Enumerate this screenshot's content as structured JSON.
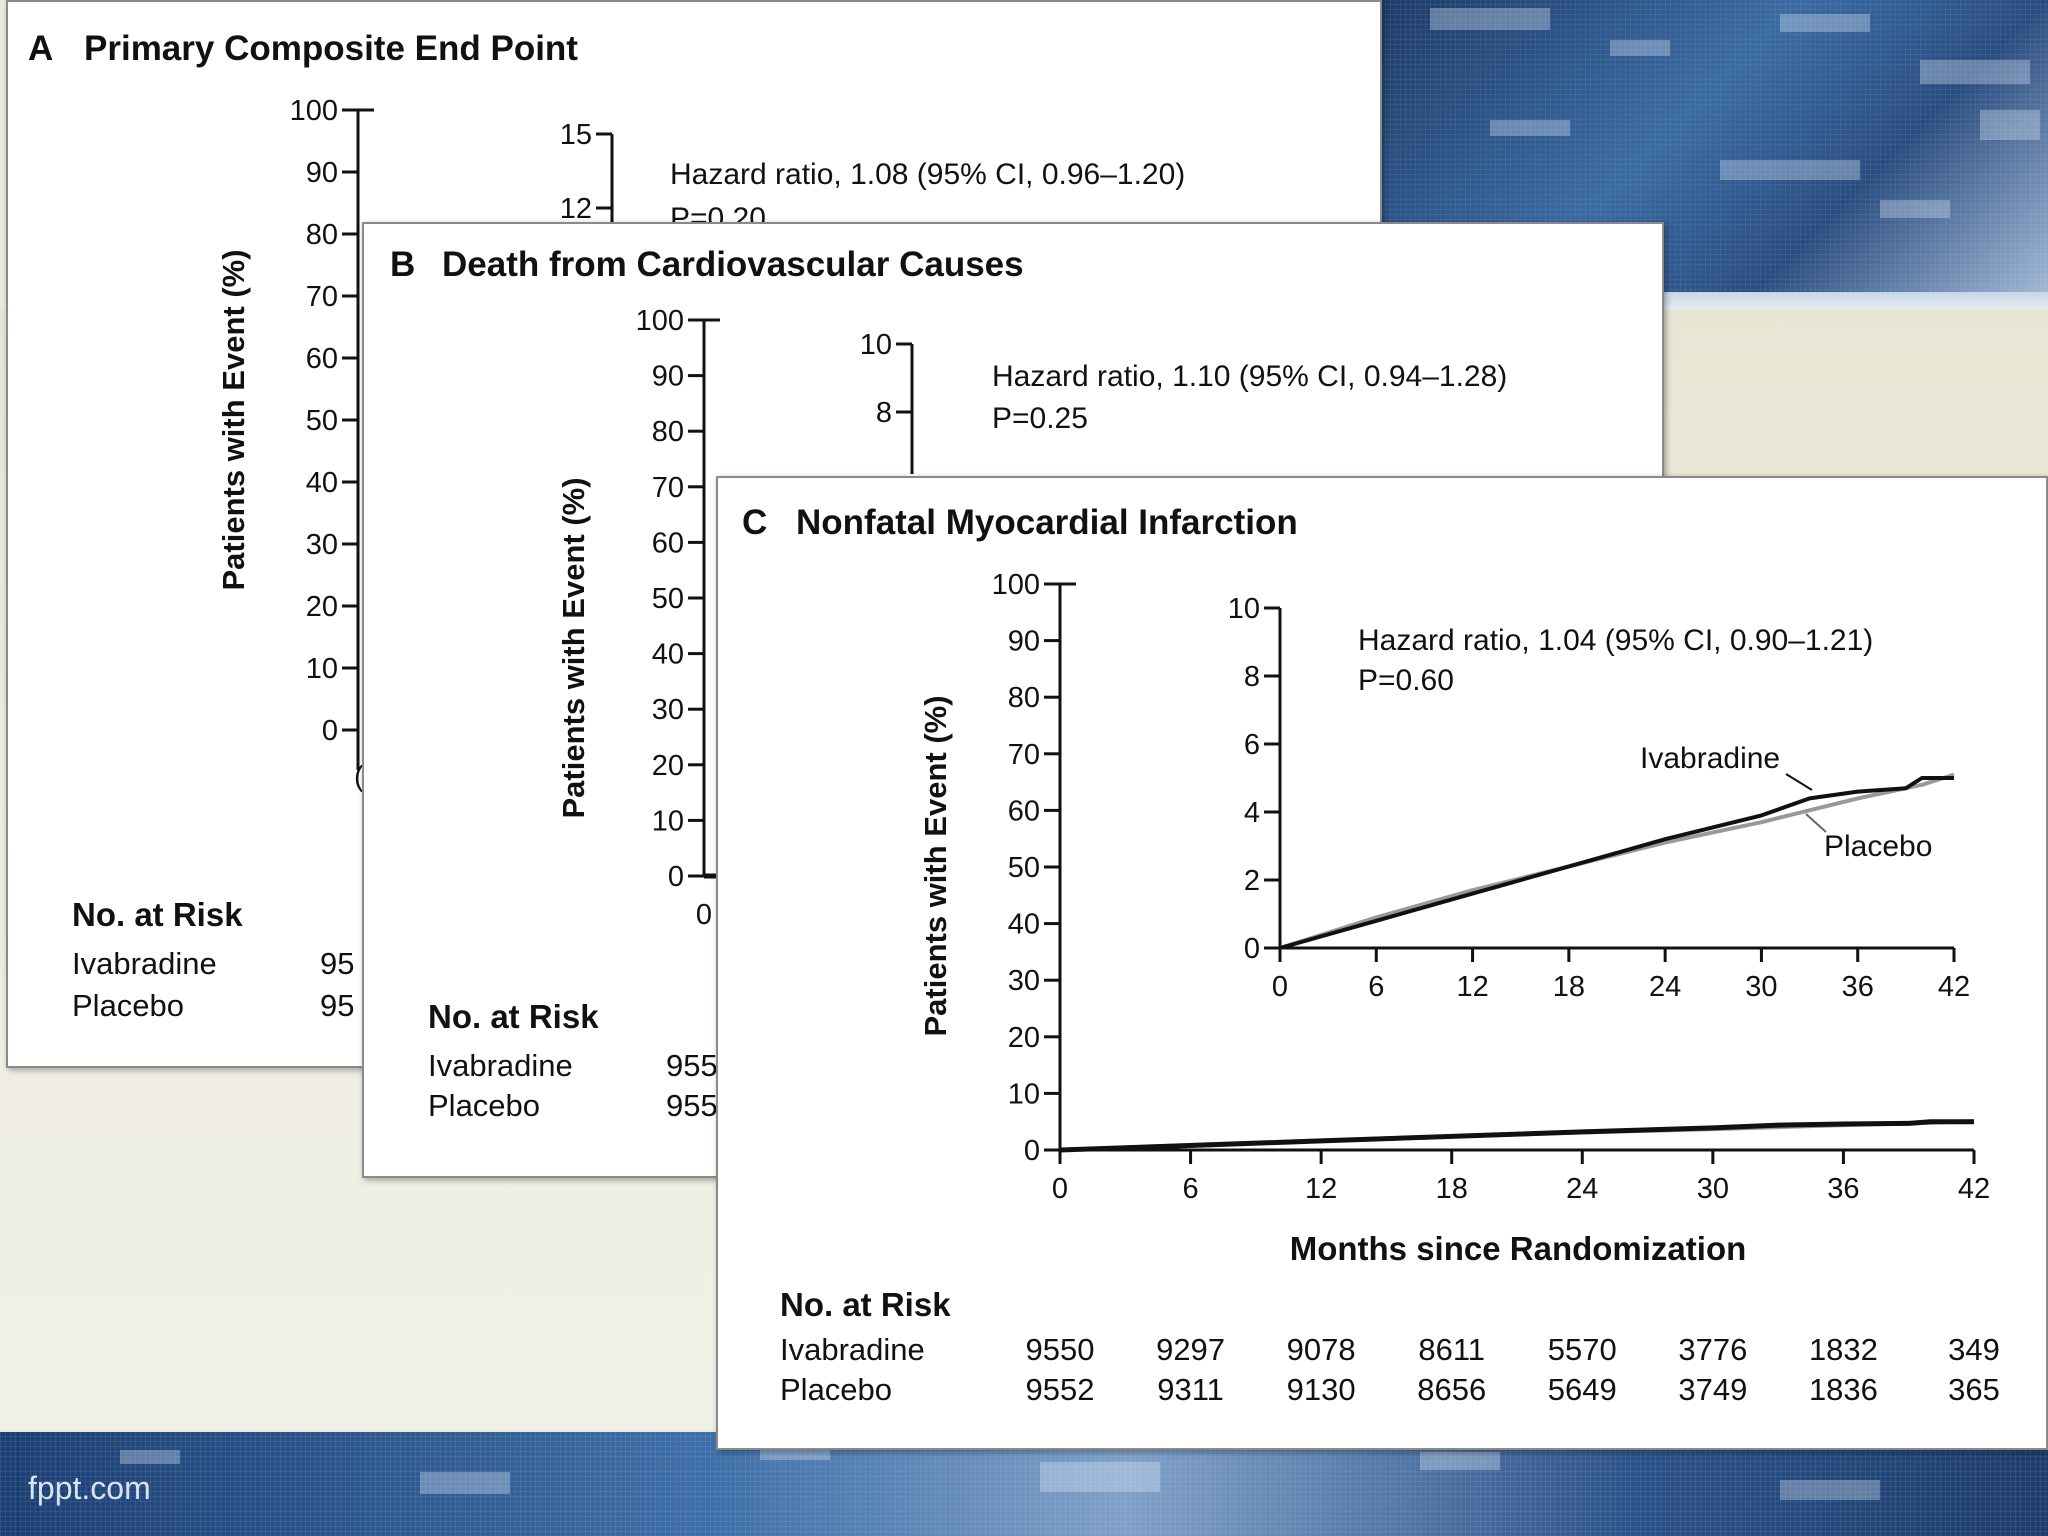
{
  "footer": {
    "site_text": "fppt.com"
  },
  "colors": {
    "ivabradine": "#111111",
    "placebo": "#999999",
    "slide_blue": "#27497a"
  },
  "chart_data": [
    {
      "type": "line",
      "panel_letter": "A",
      "title": "Primary Composite End Point",
      "ylabel": "Patients with Event (%)",
      "ylim": [
        0,
        100
      ],
      "yticks": [
        "0",
        "10",
        "20",
        "30",
        "40",
        "50",
        "60",
        "70",
        "80",
        "90",
        "100"
      ],
      "inset": {
        "yticks_visible": [
          "15",
          "12"
        ],
        "hazard_ratio": "Hazard ratio, 1.08 (95% CI, 0.96–1.20)",
        "p_value": "P=0.20"
      },
      "x_first_tick_partial": "(",
      "no_at_risk": {
        "heading": "No. at Risk",
        "rows": [
          {
            "group": "Ivabradine",
            "first_value_partial": "95"
          },
          {
            "group": "Placebo",
            "first_value_partial": "95"
          }
        ]
      }
    },
    {
      "type": "line",
      "panel_letter": "B",
      "title": "Death from Cardiovascular Causes",
      "ylabel": "Patients with Event (%)",
      "ylim": [
        0,
        100
      ],
      "yticks": [
        "0",
        "10",
        "20",
        "30",
        "40",
        "50",
        "60",
        "70",
        "80",
        "90",
        "100"
      ],
      "x_first_tick": "0",
      "inset": {
        "yticks_visible": [
          "10",
          "8"
        ],
        "hazard_ratio": "Hazard ratio, 1.10 (95% CI, 0.94–1.28)",
        "p_value": "P=0.25"
      },
      "no_at_risk": {
        "heading": "No. at Risk",
        "rows": [
          {
            "group": "Ivabradine",
            "first_value_partial": "955"
          },
          {
            "group": "Placebo",
            "first_value_partial": "955"
          }
        ]
      }
    },
    {
      "type": "line",
      "panel_letter": "C",
      "title": "Nonfatal Myocardial Infarction",
      "ylabel": "Patients with Event (%)",
      "xlabel": "Months since Randomization",
      "ylim": [
        0,
        100
      ],
      "xlim": [
        0,
        42
      ],
      "yticks": [
        "0",
        "10",
        "20",
        "30",
        "40",
        "50",
        "60",
        "70",
        "80",
        "90",
        "100"
      ],
      "xticks": [
        "0",
        "6",
        "12",
        "18",
        "24",
        "30",
        "36",
        "42"
      ],
      "series": [
        {
          "name": "Ivabradine",
          "x": [
            0,
            6,
            12,
            18,
            24,
            30,
            33,
            36,
            39,
            40,
            42
          ],
          "y": [
            0.0,
            0.8,
            1.6,
            2.4,
            3.2,
            3.9,
            4.4,
            4.6,
            4.7,
            5.0,
            5.0
          ]
        },
        {
          "name": "Placebo",
          "x": [
            0,
            6,
            12,
            18,
            24,
            30,
            36,
            40,
            42
          ],
          "y": [
            0.0,
            0.9,
            1.7,
            2.4,
            3.1,
            3.7,
            4.4,
            4.8,
            5.1
          ]
        }
      ],
      "inset": {
        "ylim": [
          0,
          10
        ],
        "xlim": [
          0,
          42
        ],
        "yticks": [
          "0",
          "2",
          "4",
          "6",
          "8",
          "10"
        ],
        "xticks": [
          "0",
          "6",
          "12",
          "18",
          "24",
          "30",
          "36",
          "42"
        ],
        "hazard_ratio": "Hazard ratio, 1.04 (95% CI, 0.90–1.21)",
        "p_value": "P=0.60",
        "label_ivabradine": "Ivabradine",
        "label_placebo": "Placebo"
      },
      "no_at_risk": {
        "heading": "No. at Risk",
        "months": [
          0,
          6,
          12,
          18,
          24,
          30,
          36,
          42
        ],
        "rows": [
          {
            "group": "Ivabradine",
            "values": [
              "9550",
              "9297",
              "9078",
              "8611",
              "5570",
              "3776",
              "1832",
              "349"
            ]
          },
          {
            "group": "Placebo",
            "values": [
              "9552",
              "9311",
              "9130",
              "8656",
              "5649",
              "3749",
              "1836",
              "365"
            ]
          }
        ]
      }
    }
  ]
}
